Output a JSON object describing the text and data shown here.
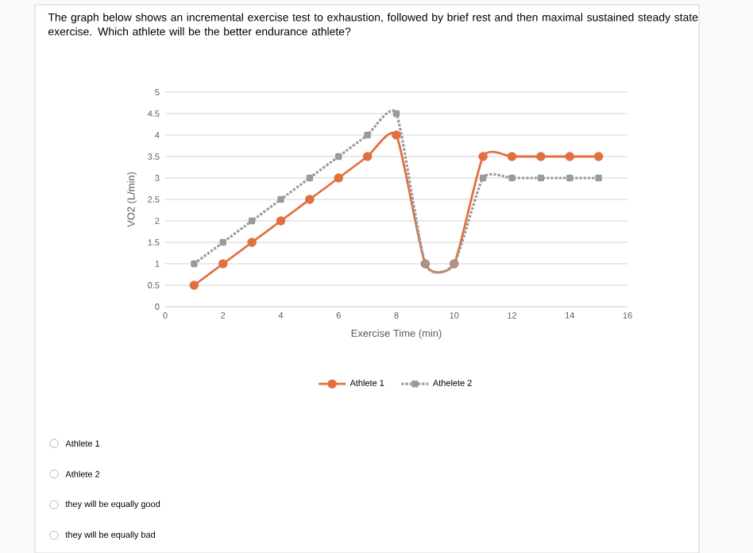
{
  "chart_data": {
    "type": "line",
    "title": "The graph below shows an incremental exercise test to exhaustion, followed by brief rest and then maximal sustained steady state exercise. Which athlete will be the better endurance athlete?",
    "xlabel": "Exercise Time (min)",
    "ylabel": "VO2 (L/min)",
    "x": [
      1,
      2,
      3,
      4,
      5,
      6,
      7,
      8,
      9,
      10,
      11,
      12,
      13,
      14,
      15
    ],
    "series": [
      {
        "name": "Athlete 1",
        "color": "#e07040",
        "marker": "circle",
        "line_style": "solid",
        "values": [
          0.5,
          1,
          1.5,
          2,
          2.5,
          3,
          3.5,
          4,
          1,
          1,
          3.5,
          3.5,
          3.5,
          3.5,
          3.5
        ]
      },
      {
        "name": "Athelete 2",
        "color": "#9a9a9a",
        "marker": "square",
        "line_style": "dotted",
        "values": [
          1,
          1.5,
          2,
          2.5,
          3,
          3.5,
          4,
          4.5,
          1,
          1,
          3,
          3,
          3,
          3,
          3
        ]
      }
    ],
    "xlim": [
      0,
      16
    ],
    "xticks": [
      0,
      2,
      4,
      6,
      8,
      10,
      12,
      14,
      16
    ],
    "ylim": [
      0,
      5
    ],
    "yticks": [
      0,
      0.5,
      1,
      1.5,
      2,
      2.5,
      3,
      3.5,
      4,
      4.5,
      5
    ],
    "grid": "y",
    "legend": "bottom",
    "annotations": [
      "Athlete 1",
      "Athlete 2",
      "they will be equally good",
      "they will be equally bad"
    ]
  }
}
